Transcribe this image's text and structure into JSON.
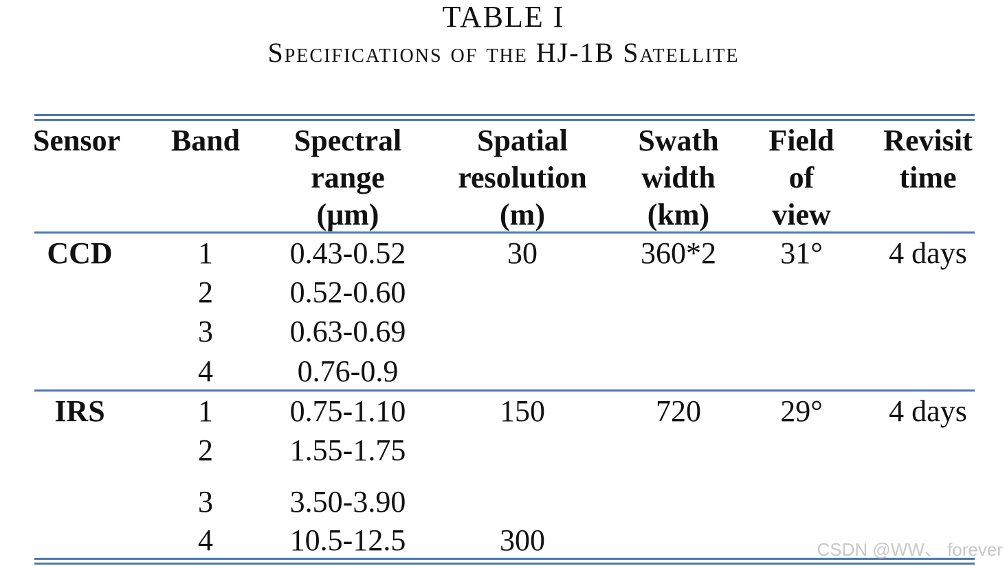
{
  "caption": {
    "number": "TABLE I",
    "title": "Specifications of the HJ-1B Satellite"
  },
  "headers": {
    "sensor": "Sensor",
    "band": "Band",
    "spectral": [
      "Spectral",
      "range",
      "(μm)"
    ],
    "spatial": [
      "Spatial",
      "resolution",
      "(m)"
    ],
    "swath": [
      "Swath",
      "width",
      "(km)"
    ],
    "field": [
      "Field",
      "of",
      "view"
    ],
    "revisit": [
      "Revisit",
      "time"
    ]
  },
  "groups": [
    {
      "sensor": "CCD",
      "bands": [
        "1",
        "2",
        "3",
        "4"
      ],
      "spectral": [
        "0.43-0.52",
        "0.52-0.60",
        "0.63-0.69",
        "0.76-0.9"
      ],
      "spatial": [
        "30",
        "",
        "",
        ""
      ],
      "swath": "360*2",
      "fov": "31°",
      "revisit": "4 days"
    },
    {
      "sensor": "IRS",
      "bands": [
        "1",
        "2",
        "3",
        "4"
      ],
      "spectral": [
        "0.75-1.10",
        "1.55-1.75",
        "3.50-3.90",
        "10.5-12.5"
      ],
      "spatial": [
        "150",
        "",
        "",
        "300"
      ],
      "swath": "720",
      "fov": "29°",
      "revisit": "4 days"
    }
  ],
  "watermark": "CSDN @WW、 forever",
  "colors": {
    "rule": "#4a78b0",
    "text": "#111111",
    "watermark": "#c8c8c8"
  }
}
